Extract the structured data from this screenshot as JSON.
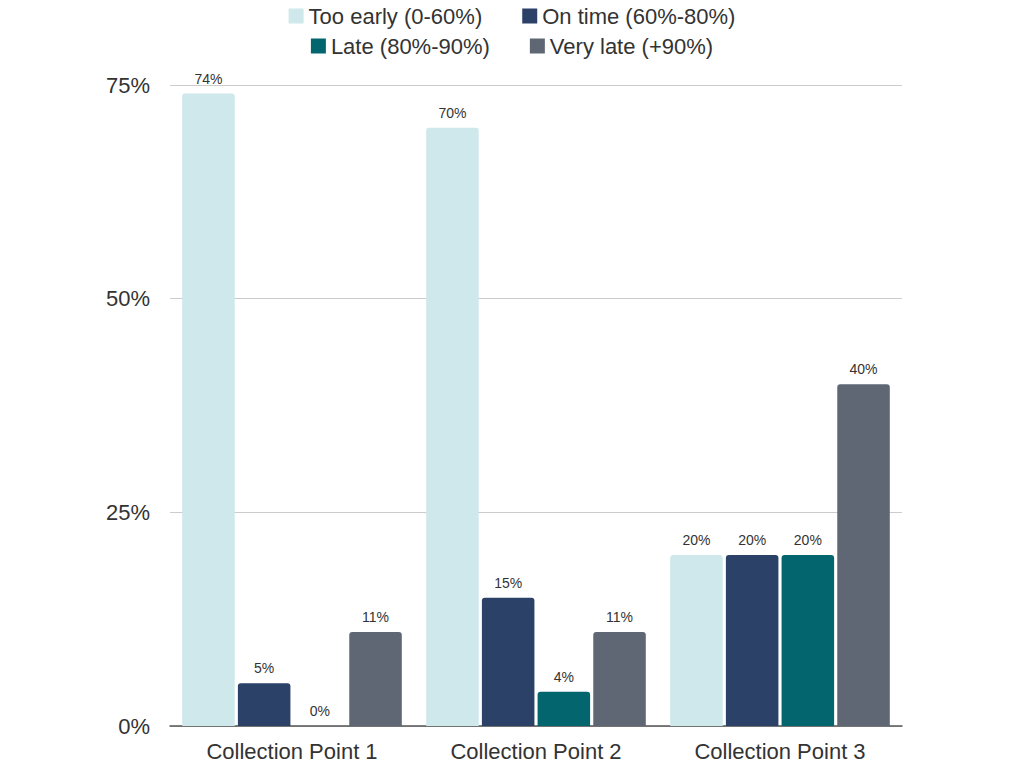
{
  "chart_data": {
    "type": "bar",
    "categories": [
      "Collection Point 1",
      "Collection Point 2",
      "Collection Point 3"
    ],
    "series": [
      {
        "name": "Too early (0-60%)",
        "color": "#cee8eb",
        "values": [
          74,
          70,
          20
        ],
        "value_labels": [
          "74%",
          "70%",
          "20%"
        ]
      },
      {
        "name": "On time (60%-80%)",
        "color": "#2b4168",
        "values": [
          5,
          15,
          20
        ],
        "value_labels": [
          "5%",
          "15%",
          "20%"
        ]
      },
      {
        "name": "Late (80%-90%)",
        "color": "#03666f",
        "values": [
          0,
          4,
          20
        ],
        "value_labels": [
          "0%",
          "4%",
          "20%"
        ]
      },
      {
        "name": "Very late (+90%)",
        "color": "#5f6674",
        "values": [
          11,
          11,
          40
        ],
        "value_labels": [
          "11%",
          "11%",
          "40%"
        ]
      }
    ],
    "ylim": [
      0,
      75
    ],
    "yticks": [
      {
        "value": 0,
        "label": "0%"
      },
      {
        "value": 25,
        "label": "25%"
      },
      {
        "value": 50,
        "label": "50%"
      },
      {
        "value": 75,
        "label": "75%"
      }
    ],
    "grid": true,
    "legend": "top",
    "data_labels": true
  }
}
